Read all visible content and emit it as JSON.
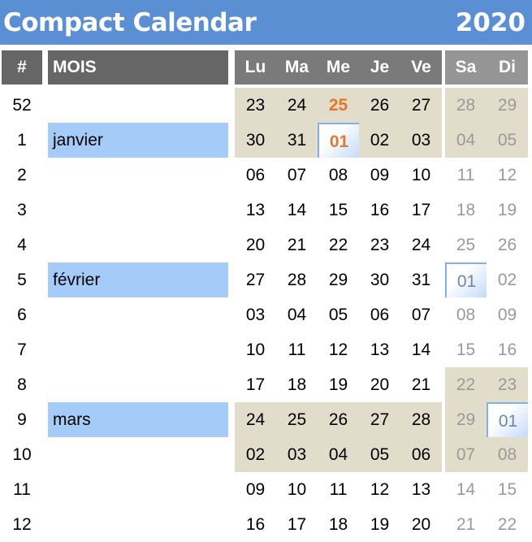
{
  "header": {
    "title": "Compact Calendar",
    "year": "2020"
  },
  "columns": {
    "week": "#",
    "month": "MOIS",
    "days": [
      "Lu",
      "Ma",
      "Me",
      "Je",
      "Ve",
      "Sa",
      "Di"
    ]
  },
  "colors": {
    "title_bar": "#5b8fd3",
    "header_bg": "#666666",
    "month_highlight": "#a5cbf8",
    "shade": "#e2dccb",
    "today": "#e07a2a"
  },
  "rows": [
    {
      "week": "52",
      "month": "",
      "days": [
        "23",
        "24",
        "25",
        "26",
        "27",
        "28",
        "29"
      ]
    },
    {
      "week": "1",
      "month": "janvier",
      "days": [
        "30",
        "31",
        "01",
        "02",
        "03",
        "04",
        "05"
      ]
    },
    {
      "week": "2",
      "month": "",
      "days": [
        "06",
        "07",
        "08",
        "09",
        "10",
        "11",
        "12"
      ]
    },
    {
      "week": "3",
      "month": "",
      "days": [
        "13",
        "14",
        "15",
        "16",
        "17",
        "18",
        "19"
      ]
    },
    {
      "week": "4",
      "month": "",
      "days": [
        "20",
        "21",
        "22",
        "23",
        "24",
        "25",
        "26"
      ]
    },
    {
      "week": "5",
      "month": "février",
      "days": [
        "27",
        "28",
        "29",
        "30",
        "31",
        "01",
        "02"
      ]
    },
    {
      "week": "6",
      "month": "",
      "days": [
        "03",
        "04",
        "05",
        "06",
        "07",
        "08",
        "09"
      ]
    },
    {
      "week": "7",
      "month": "",
      "days": [
        "10",
        "11",
        "12",
        "13",
        "14",
        "15",
        "16"
      ]
    },
    {
      "week": "8",
      "month": "",
      "days": [
        "17",
        "18",
        "19",
        "20",
        "21",
        "22",
        "23"
      ]
    },
    {
      "week": "9",
      "month": "mars",
      "days": [
        "24",
        "25",
        "26",
        "27",
        "28",
        "29",
        "01"
      ]
    },
    {
      "week": "10",
      "month": "",
      "days": [
        "02",
        "03",
        "04",
        "05",
        "06",
        "07",
        "08"
      ]
    },
    {
      "week": "11",
      "month": "",
      "days": [
        "09",
        "10",
        "11",
        "12",
        "13",
        "14",
        "15"
      ]
    },
    {
      "week": "12",
      "month": "",
      "days": [
        "16",
        "17",
        "18",
        "19",
        "20",
        "21",
        "22"
      ]
    }
  ]
}
